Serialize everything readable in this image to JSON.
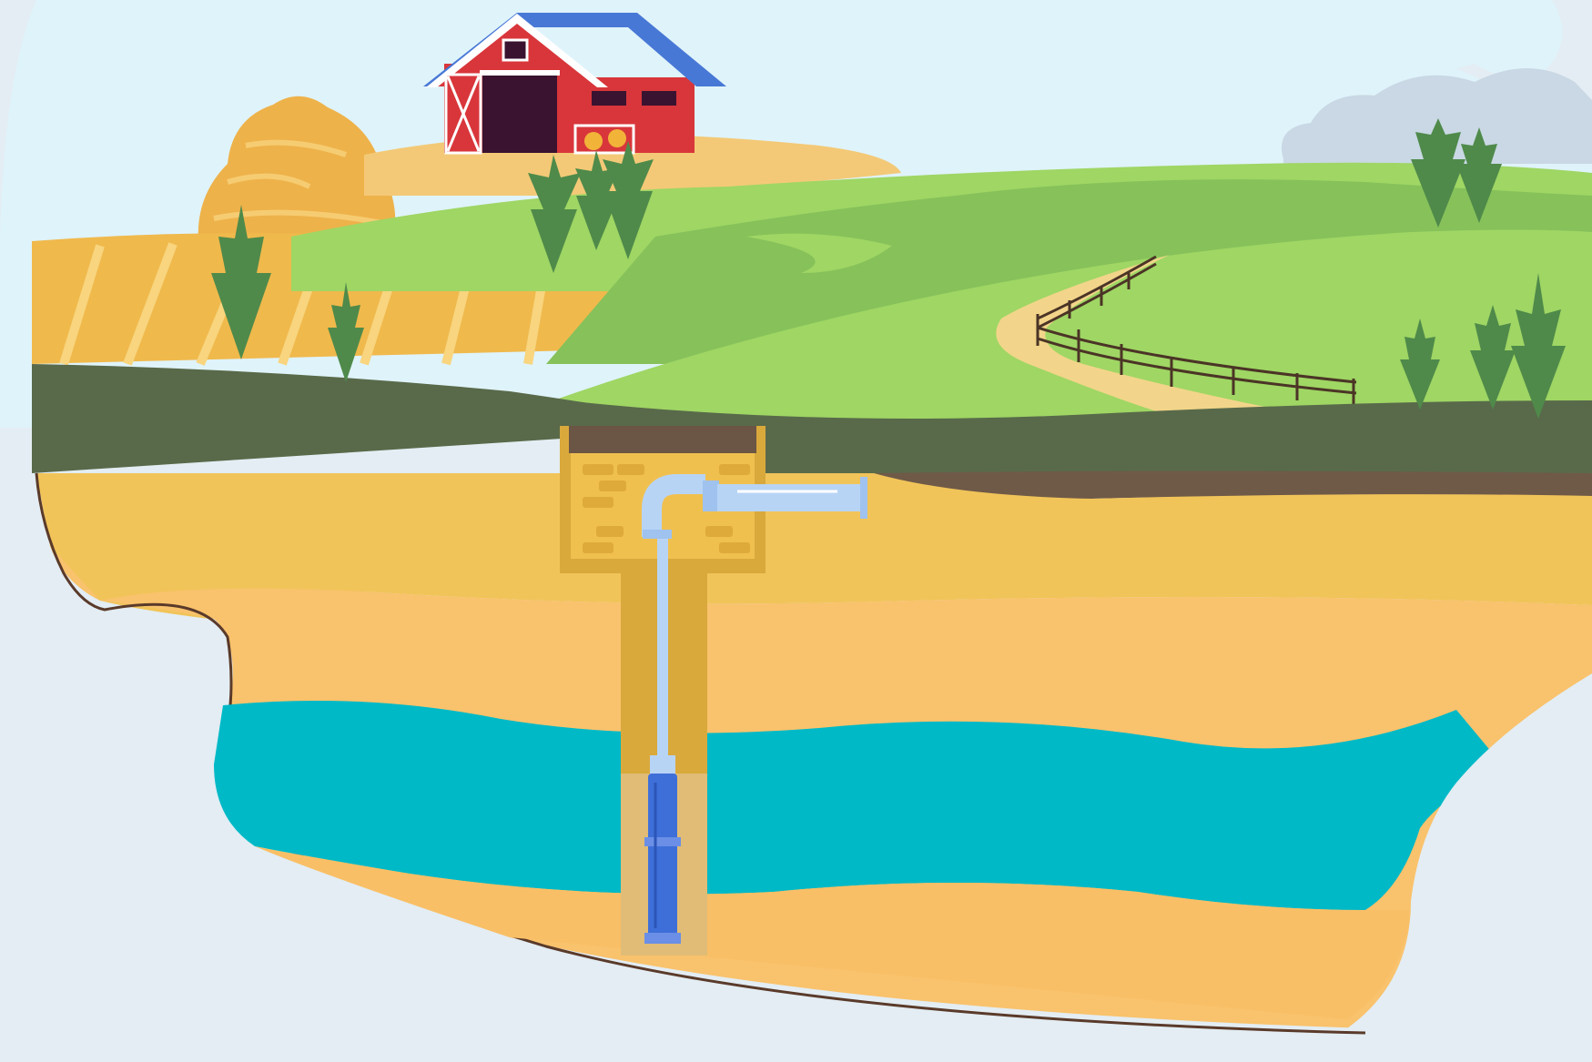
{
  "scene": {
    "colors": {
      "sky": "#dff3fa",
      "backdrop": "#e3edf3",
      "cloud": "#c6d6e2",
      "hay": "#f0b94c",
      "hay_stripe": "#f8d57e",
      "grass_light": "#9fd664",
      "grass_mid": "#86c15a",
      "grass_dark": "#5a6b4a",
      "dirt_path": "#f2d58a",
      "soil_dark": "#6f5a48",
      "topsoil": "#f1c459",
      "sand": "#f9c26c",
      "sand_deep": "#f9bf66",
      "water": "#00b9c7",
      "well_shaft": "#d9a93c",
      "brick": "#f0c04f",
      "pipe": "#b8d4f5",
      "pump": "#3e6fd8",
      "barn_red": "#d8363b",
      "barn_roof": "#4878d6",
      "tree": "#4f8a4a"
    },
    "icons": [
      "barn-icon",
      "haystack-icon",
      "pine-tree-icon",
      "fence-icon",
      "water-pipe-icon",
      "submersible-pump-icon"
    ]
  }
}
